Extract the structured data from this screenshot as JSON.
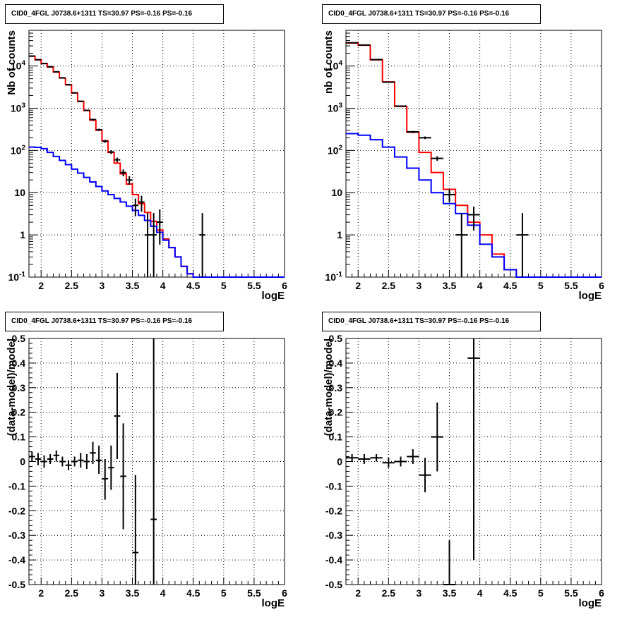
{
  "chart_data": [
    {
      "type": "scatter",
      "title": "CID0_4FGL J0738.6+1311 TS=30.97 PS=-0.16 PS=-0.16",
      "xlabel": "logE",
      "ylabel": "Nb of counts",
      "xlim": [
        1.8,
        6.0
      ],
      "ylim": [
        0.1,
        70000
      ],
      "yscale": "log",
      "grid": true,
      "x_ticks": [
        "2",
        "2.5",
        "3",
        "3.5",
        "4",
        "4.5",
        "5",
        "5.5",
        "6"
      ],
      "y_ticks": [
        "10^-1",
        "1",
        "10",
        "10^2",
        "10^3",
        "10^4"
      ],
      "series": [
        {
          "color": "#ff0000",
          "style": "step",
          "bin_edges": [
            1.8,
            1.9,
            2.0,
            2.1,
            2.2,
            2.3,
            2.4,
            2.5,
            2.6,
            2.7,
            2.8,
            2.9,
            3.0,
            3.1,
            3.2,
            3.3,
            3.4,
            3.5,
            3.6,
            3.7,
            3.8,
            3.9,
            4.0,
            4.1,
            4.2,
            4.3,
            4.4,
            4.5,
            4.6,
            4.7,
            4.8,
            4.9,
            5.0,
            5.1,
            5.2,
            5.3,
            5.4,
            5.5,
            5.6,
            5.7,
            5.8,
            5.9,
            6.0
          ],
          "values": [
            17000,
            14000,
            11500,
            9500,
            7200,
            5200,
            3600,
            2300,
            1450,
            880,
            520,
            300,
            170,
            90,
            50,
            28,
            16,
            9,
            5.5,
            3.4,
            2.1,
            1.3,
            0.8,
            0.5,
            0.3,
            0.18,
            0.12,
            0.1,
            0.1,
            0.1,
            0.1,
            0.1,
            0.1,
            0.1,
            0.1,
            0.1,
            0.1,
            0.1,
            0.1,
            0.1,
            0.1,
            0.1
          ]
        },
        {
          "color": "#0000ff",
          "style": "step",
          "bin_edges": [
            1.8,
            1.9,
            2.0,
            2.1,
            2.2,
            2.3,
            2.4,
            2.5,
            2.6,
            2.7,
            2.8,
            2.9,
            3.0,
            3.1,
            3.2,
            3.3,
            3.4,
            3.5,
            3.6,
            3.7,
            3.8,
            3.9,
            4.0,
            4.1,
            4.2,
            4.3,
            4.4,
            4.5,
            4.6,
            4.7,
            4.8,
            4.9,
            5.0,
            5.1,
            5.2,
            5.3,
            5.4,
            5.5,
            5.6,
            5.7,
            5.8,
            5.9,
            6.0
          ],
          "values": [
            120,
            118,
            110,
            90,
            72,
            58,
            46,
            36,
            29,
            23,
            18,
            14,
            11,
            9,
            7.3,
            6,
            4.8,
            3.8,
            2.9,
            2.2,
            1.6,
            1.15,
            0.75,
            0.5,
            0.3,
            0.18,
            0.12,
            0.1,
            0.1,
            0.1,
            0.1,
            0.1,
            0.1,
            0.1,
            0.1,
            0.1,
            0.1,
            0.1,
            0.1,
            0.1,
            0.1,
            0.1
          ]
        },
        {
          "color": "#000000",
          "style": "errorbar",
          "x": [
            1.85,
            1.95,
            2.05,
            2.15,
            2.25,
            2.35,
            2.45,
            2.55,
            2.65,
            2.75,
            2.85,
            2.95,
            3.05,
            3.15,
            3.25,
            3.35,
            3.45,
            3.55,
            3.65,
            3.75,
            3.85,
            3.95,
            4.65
          ],
          "x_err": 0.05,
          "values": [
            17200,
            14100,
            11400,
            9600,
            7300,
            5250,
            3580,
            2310,
            1460,
            890,
            540,
            310,
            165,
            92,
            60,
            30,
            20,
            5,
            6,
            1,
            1,
            2,
            1
          ],
          "y_low": [
            17070,
            13980,
            11290,
            9500,
            7210,
            5180,
            3520,
            2260,
            1420,
            860,
            517,
            292,
            152,
            82.4,
            52.3,
            24.5,
            15.5,
            2.76,
            3.55,
            0.1,
            0.1,
            0.59,
            0.1
          ],
          "y_high": [
            17330,
            14220,
            11510,
            9700,
            7390,
            5320,
            3640,
            2360,
            1500,
            920,
            563,
            328,
            178,
            102,
            67.7,
            35.5,
            24.5,
            7.24,
            8.45,
            3.3,
            3.3,
            4.0,
            3.3
          ]
        }
      ]
    },
    {
      "type": "scatter",
      "title": "CID0_4FGL J0738.6+1311 TS=30.97 PS=-0.16 PS=-0.16",
      "xlabel": "logE",
      "ylabel": "nb of counts",
      "xlim": [
        1.8,
        6.0
      ],
      "ylim": [
        0.1,
        70000
      ],
      "yscale": "log",
      "grid": true,
      "x_ticks": [
        "2",
        "2.5",
        "3",
        "3.5",
        "4",
        "4.5",
        "5",
        "5.5",
        "6"
      ],
      "y_ticks": [
        "10^-1",
        "1",
        "10",
        "10^2",
        "10^3",
        "10^4"
      ],
      "series": [
        {
          "color": "#ff0000",
          "style": "step",
          "bin_edges": [
            1.8,
            2.0,
            2.2,
            2.4,
            2.6,
            2.8,
            3.0,
            3.2,
            3.4,
            3.6,
            3.8,
            4.0,
            4.2,
            4.4,
            4.6,
            4.8,
            5.0,
            5.2,
            5.4,
            5.6,
            5.8,
            6.0
          ],
          "values": [
            35000,
            31000,
            14000,
            4200,
            1100,
            270,
            90,
            30,
            12,
            5,
            2,
            1,
            0.35,
            0.15,
            0.1,
            0.1,
            0.1,
            0.1,
            0.1,
            0.1,
            0.1
          ]
        },
        {
          "color": "#0000ff",
          "style": "step",
          "bin_edges": [
            1.8,
            2.0,
            2.2,
            2.4,
            2.6,
            2.8,
            3.0,
            3.2,
            3.4,
            3.6,
            3.8,
            4.0,
            4.2,
            4.4,
            4.6,
            4.8,
            5.0,
            5.2,
            5.4,
            5.6,
            5.8,
            6.0
          ],
          "values": [
            250,
            230,
            180,
            120,
            70,
            38,
            20,
            10,
            5.5,
            3.2,
            1.7,
            0.6,
            0.3,
            0.15,
            0.1,
            0.1,
            0.1,
            0.1,
            0.1,
            0.1,
            0.1
          ]
        },
        {
          "color": "#000000",
          "style": "errorbar",
          "x": [
            1.9,
            2.1,
            2.3,
            2.5,
            2.7,
            2.9,
            3.1,
            3.3,
            3.5,
            3.7,
            3.9,
            4.7
          ],
          "x_err": 0.1,
          "values": [
            35500,
            31300,
            14200,
            4150,
            1120,
            275,
            200,
            65,
            9,
            1,
            3,
            1
          ],
          "y_low": [
            35310,
            31120,
            14080,
            4086,
            1087,
            258.4,
            186,
            57,
            6,
            0.1,
            1.27,
            0.1
          ],
          "y_high": [
            35690,
            31480,
            14320,
            4214,
            1153,
            291.6,
            214,
            73,
            12,
            3.3,
            4.7,
            3.3
          ]
        }
      ]
    },
    {
      "type": "scatter",
      "title": "CID0_4FGL J0738.6+1311 TS=30.97 PS=-0.16 PS=-0.16",
      "xlabel": "logE",
      "ylabel": "(data-model)/model",
      "xlim": [
        1.8,
        6.0
      ],
      "ylim": [
        -0.5,
        0.5
      ],
      "grid": true,
      "x_ticks": [
        "2",
        "2.5",
        "3",
        "3.5",
        "4",
        "4.5",
        "5",
        "5.5",
        "6"
      ],
      "y_ticks": [
        "-0.5",
        "-0.4",
        "-0.3",
        "-0.2",
        "-0.1",
        "0",
        "0.1",
        "0.2",
        "0.3",
        "0.4",
        "0.5"
      ],
      "series": [
        {
          "color": "#000000",
          "style": "errorbar",
          "x": [
            1.85,
            1.95,
            2.05,
            2.15,
            2.25,
            2.35,
            2.45,
            2.55,
            2.65,
            2.75,
            2.85,
            2.95,
            3.05,
            3.15,
            3.25,
            3.35,
            3.55,
            3.85
          ],
          "x_err": 0.05,
          "values": [
            0.02,
            0.01,
            0.0,
            0.01,
            0.025,
            0.0,
            -0.015,
            0.0,
            0.005,
            0.0,
            0.035,
            0.005,
            -0.07,
            -0.025,
            0.185,
            -0.06,
            -0.37,
            -0.235
          ],
          "y_low": [
            0.0,
            -0.015,
            -0.025,
            -0.01,
            0.0,
            -0.02,
            -0.035,
            -0.02,
            -0.025,
            -0.03,
            -0.01,
            -0.05,
            -0.155,
            -0.115,
            0.01,
            -0.275,
            -0.5,
            -0.5
          ],
          "y_high": [
            0.04,
            0.035,
            0.025,
            0.03,
            0.045,
            0.02,
            0.005,
            0.02,
            0.035,
            0.03,
            0.08,
            0.065,
            0.01,
            0.065,
            0.36,
            0.155,
            -0.055,
            0.5
          ]
        }
      ]
    },
    {
      "type": "scatter",
      "title": "CID0_4FGL J0738.6+1311 TS=30.97 PS=-0.16 PS=-0.16",
      "xlabel": "logE",
      "ylabel": "(data-model)/model",
      "xlim": [
        1.8,
        6.0
      ],
      "ylim": [
        -0.5,
        0.5
      ],
      "grid": true,
      "x_ticks": [
        "2",
        "2.5",
        "3",
        "3.5",
        "4",
        "4.5",
        "5",
        "5.5",
        "6"
      ],
      "y_ticks": [
        "-0.5",
        "-0.4",
        "-0.3",
        "-0.2",
        "-0.1",
        "0",
        "0.1",
        "0.2",
        "0.3",
        "0.4",
        "0.5"
      ],
      "series": [
        {
          "color": "#000000",
          "style": "errorbar",
          "x": [
            1.9,
            2.1,
            2.3,
            2.5,
            2.7,
            2.9,
            3.1,
            3.3,
            3.5,
            3.9
          ],
          "x_err": 0.1,
          "values": [
            0.015,
            0.01,
            0.015,
            -0.005,
            0.0,
            0.02,
            -0.055,
            0.1,
            -0.5,
            0.42
          ],
          "y_low": [
            0.0,
            -0.01,
            0.0,
            -0.025,
            -0.02,
            -0.01,
            -0.125,
            -0.04,
            -0.5,
            -0.4
          ],
          "y_high": [
            0.03,
            0.03,
            0.03,
            0.015,
            0.02,
            0.05,
            0.015,
            0.24,
            -0.32,
            0.5
          ]
        }
      ]
    }
  ]
}
